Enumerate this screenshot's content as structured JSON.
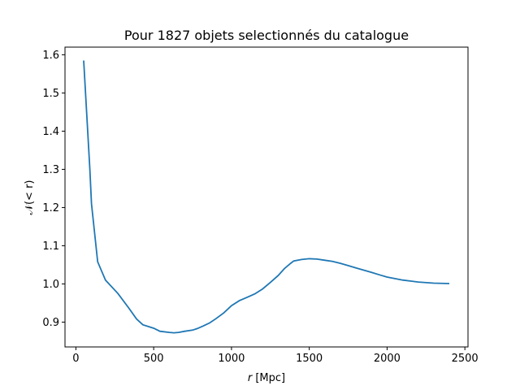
{
  "chart_data": {
    "type": "line",
    "title": "Pour 1827 objets selectionnés du catalogue",
    "xlabel_var": "r",
    "xlabel_unit": " [Mpc]",
    "ylabel": "𝒩(< r)",
    "xlim": [
      -70,
      2520
    ],
    "ylim": [
      0.835,
      1.62
    ],
    "xticks": [
      "0",
      "500",
      "1000",
      "1500",
      "2000",
      "2500"
    ],
    "yticks": [
      "0.9",
      "1.0",
      "1.1",
      "1.2",
      "1.3",
      "1.4",
      "1.5",
      "1.6"
    ],
    "grid": false,
    "color": "#1f77b4",
    "series": [
      {
        "x": [
          50,
          90,
          100,
          140,
          190,
          270,
          340,
          390,
          430,
          500,
          540,
          600,
          630,
          660,
          700,
          750,
          780,
          820,
          860,
          900,
          950,
          1000,
          1050,
          1100,
          1150,
          1200,
          1250,
          1300,
          1340,
          1380,
          1400,
          1450,
          1500,
          1550,
          1600,
          1650,
          1700,
          1750,
          1800,
          1850,
          1900,
          1950,
          2000,
          2100,
          2200,
          2300,
          2400
        ],
        "y": [
          1.585,
          1.3,
          1.21,
          1.058,
          1.01,
          0.975,
          0.937,
          0.908,
          0.893,
          0.884,
          0.876,
          0.873,
          0.872,
          0.873,
          0.876,
          0.879,
          0.883,
          0.89,
          0.898,
          0.909,
          0.924,
          0.943,
          0.956,
          0.965,
          0.974,
          0.987,
          1.004,
          1.022,
          1.04,
          1.054,
          1.06,
          1.064,
          1.066,
          1.065,
          1.062,
          1.059,
          1.054,
          1.048,
          1.042,
          1.036,
          1.03,
          1.024,
          1.018,
          1.01,
          1.005,
          1.002,
          1.001
        ]
      }
    ]
  }
}
